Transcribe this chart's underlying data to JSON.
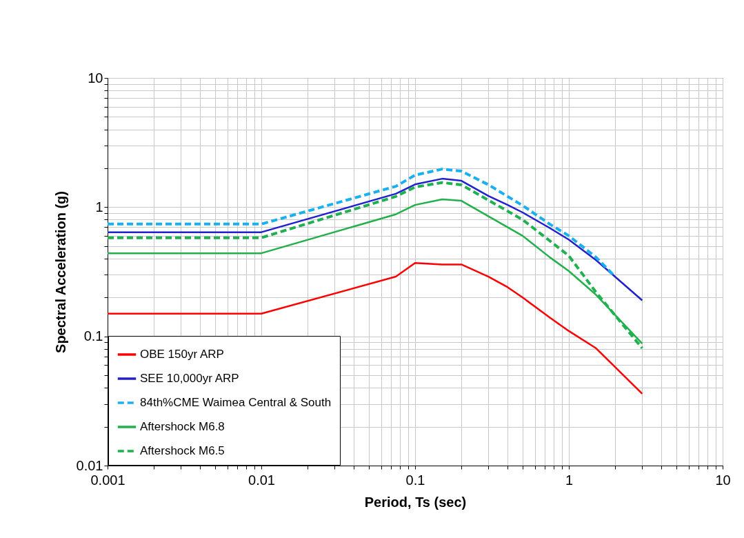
{
  "chart_data": {
    "type": "line",
    "xlabel": "Period, Ts (sec)",
    "ylabel": "Spectral Acceleration (g)",
    "log": "xy",
    "grid": true,
    "legend": "bottom left",
    "xlim": [
      0.001,
      10
    ],
    "ylim": [
      0.01,
      10
    ],
    "xticks": [
      0.001,
      {
        "value": 0.002,
        "label": null
      },
      {
        "value": 0.003,
        "label": null
      },
      {
        "value": 0.004,
        "label": null
      },
      {
        "value": 0.005,
        "label": null
      },
      {
        "value": 0.006,
        "label": null
      },
      {
        "value": 0.007,
        "label": null
      },
      {
        "value": 0.008,
        "label": null
      },
      {
        "value": 0.009,
        "label": null
      },
      0.01,
      {
        "value": 0.02,
        "label": null
      },
      {
        "value": 0.03,
        "label": null
      },
      {
        "value": 0.04,
        "label": null
      },
      {
        "value": 0.05,
        "label": null
      },
      {
        "value": 0.06,
        "label": null
      },
      {
        "value": 0.07,
        "label": null
      },
      {
        "value": 0.08,
        "label": null
      },
      {
        "value": 0.09,
        "label": null
      },
      0.1,
      {
        "value": 0.2,
        "label": null
      },
      {
        "value": 0.3,
        "label": null
      },
      {
        "value": 0.4,
        "label": null
      },
      {
        "value": 0.5,
        "label": null
      },
      {
        "value": 0.6,
        "label": null
      },
      {
        "value": 0.7,
        "label": null
      },
      {
        "value": 0.8,
        "label": null
      },
      {
        "value": 0.9,
        "label": null
      },
      1,
      {
        "value": 2,
        "label": null
      },
      {
        "value": 3,
        "label": null
      },
      {
        "value": 4,
        "label": null
      },
      {
        "value": 5,
        "label": null
      },
      {
        "value": 6,
        "label": null
      },
      {
        "value": 7,
        "label": null
      },
      {
        "value": 8,
        "label": null
      },
      {
        "value": 9,
        "label": null
      },
      10
    ],
    "yticks": [
      0.01,
      {
        "value": 0.02,
        "label": null
      },
      {
        "value": 0.03,
        "label": null
      },
      {
        "value": 0.04,
        "label": null
      },
      {
        "value": 0.05,
        "label": null
      },
      {
        "value": 0.06,
        "label": null
      },
      {
        "value": 0.07,
        "label": null
      },
      {
        "value": 0.08,
        "label": null
      },
      {
        "value": 0.09,
        "label": null
      },
      0.1,
      {
        "value": 0.2,
        "label": null
      },
      {
        "value": 0.3,
        "label": null
      },
      {
        "value": 0.4,
        "label": null
      },
      {
        "value": 0.5,
        "label": null
      },
      {
        "value": 0.6,
        "label": null
      },
      {
        "value": 0.7,
        "label": null
      },
      {
        "value": 0.8,
        "label": null
      },
      {
        "value": 0.9,
        "label": null
      },
      1,
      {
        "value": 2,
        "label": null
      },
      {
        "value": 3,
        "label": null
      },
      {
        "value": 4,
        "label": null
      },
      {
        "value": 5,
        "label": null
      },
      {
        "value": 6,
        "label": null
      },
      {
        "value": 7,
        "label": null
      },
      {
        "value": 8,
        "label": null
      },
      {
        "value": 9,
        "label": null
      },
      10
    ],
    "series": [
      {
        "name": "OBE 150yr ARP",
        "color": "#ff0000",
        "line_style": "solid",
        "x": [
          0.001,
          0.01,
          0.075,
          0.1,
          0.15,
          0.2,
          0.3,
          0.4,
          0.5,
          0.75,
          1,
          1.5,
          3
        ],
        "values": [
          0.15,
          0.15,
          0.29,
          0.37,
          0.36,
          0.36,
          0.29,
          0.24,
          0.2,
          0.14,
          0.11,
          0.081,
          0.036
        ]
      },
      {
        "name": "SEE 10,000yr ARP",
        "color": "#2020d0",
        "line_style": "solid",
        "x": [
          0.001,
          0.01,
          0.075,
          0.1,
          0.15,
          0.2,
          0.3,
          0.4,
          0.5,
          0.75,
          1,
          1.5,
          3
        ],
        "values": [
          0.64,
          0.64,
          1.27,
          1.5,
          1.66,
          1.6,
          1.22,
          1.04,
          0.91,
          0.69,
          0.56,
          0.39,
          0.19
        ]
      },
      {
        "name": "84th%CME Waimea Central & South",
        "color": "#1ab0f0",
        "line_style": "dashed",
        "x": [
          0.001,
          0.01,
          0.075,
          0.1,
          0.15,
          0.2,
          0.3,
          0.5,
          0.75,
          1,
          1.5,
          2
        ],
        "values": [
          0.74,
          0.74,
          1.45,
          1.77,
          1.97,
          1.9,
          1.49,
          1.03,
          0.74,
          0.6,
          0.41,
          0.29
        ]
      },
      {
        "name": "Aftershock M6.8",
        "color": "#22b04a",
        "line_style": "solid",
        "x": [
          0.001,
          0.01,
          0.075,
          0.1,
          0.15,
          0.2,
          0.5,
          0.75,
          1,
          1.5,
          3
        ],
        "values": [
          0.44,
          0.44,
          0.88,
          1.04,
          1.15,
          1.12,
          0.6,
          0.41,
          0.32,
          0.21,
          0.088
        ]
      },
      {
        "name": "Aftershock M6.5",
        "color": "#1fb050",
        "line_style": "dashed",
        "x": [
          0.001,
          0.01,
          0.075,
          0.1,
          0.15,
          0.2,
          0.5,
          0.75,
          1,
          1.5,
          3
        ],
        "values": [
          0.58,
          0.58,
          1.21,
          1.43,
          1.55,
          1.49,
          0.8,
          0.55,
          0.42,
          0.22,
          0.081
        ]
      }
    ]
  }
}
